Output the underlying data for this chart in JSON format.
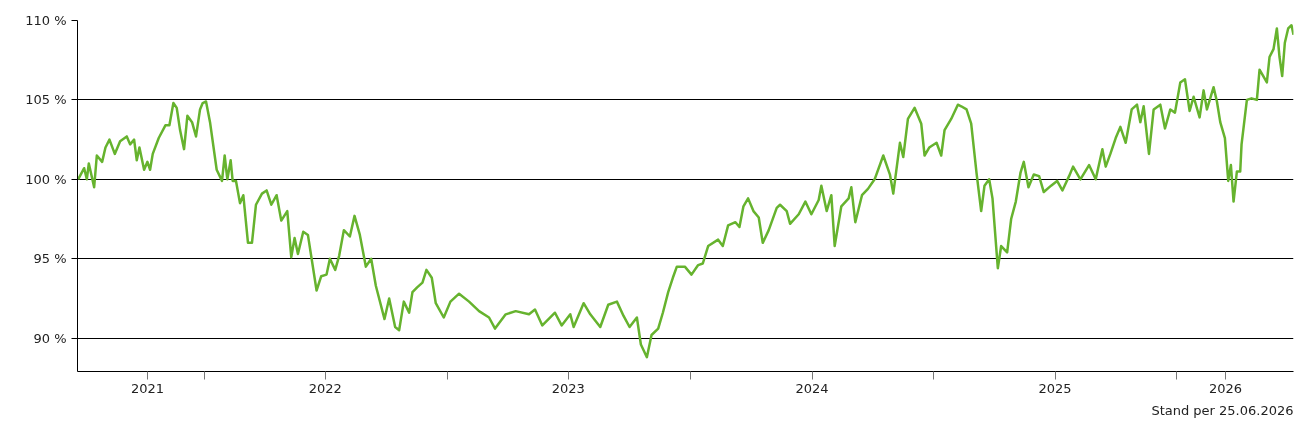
{
  "chart_data": {
    "type": "line",
    "x": [
      "2021-06-26",
      "2021-07-05",
      "2021-07-09",
      "2021-07-12",
      "2021-07-20",
      "2021-07-24",
      "2021-08-01",
      "2021-08-06",
      "2021-08-12",
      "2021-08-20",
      "2021-08-28",
      "2021-09-07",
      "2021-09-12",
      "2021-09-18",
      "2021-09-22",
      "2021-09-26",
      "2021-10-03",
      "2021-10-08",
      "2021-10-12",
      "2021-10-16",
      "2021-10-25",
      "2021-11-04",
      "2021-11-10",
      "2021-11-16",
      "2021-11-21",
      "2021-11-26",
      "2021-12-02",
      "2021-12-07",
      "2021-12-14",
      "2021-12-20",
      "2021-12-26",
      "2021-12-30",
      "2022-01-04",
      "2022-01-10",
      "2022-01-20",
      "2022-01-28",
      "2022-02-01",
      "2022-02-05",
      "2022-02-10",
      "2022-02-13",
      "2022-02-18",
      "2022-02-24",
      "2022-03-01",
      "2022-03-08",
      "2022-03-14",
      "2022-03-20",
      "2022-03-29",
      "2022-04-05",
      "2022-04-12",
      "2022-04-20",
      "2022-04-27",
      "2022-05-06",
      "2022-05-12",
      "2022-05-17",
      "2022-05-22",
      "2022-05-30",
      "2022-06-06",
      "2022-06-19",
      "2022-06-26",
      "2022-07-04",
      "2022-07-09",
      "2022-07-17",
      "2022-07-23",
      "2022-07-30",
      "2022-08-08",
      "2022-08-15",
      "2022-08-23",
      "2022-09-01",
      "2022-09-09",
      "2022-09-16",
      "2022-09-29",
      "2022-10-06",
      "2022-10-15",
      "2022-10-21",
      "2022-10-28",
      "2022-11-05",
      "2022-11-10",
      "2022-11-17",
      "2022-11-25",
      "2022-12-01",
      "2022-12-09",
      "2022-12-15",
      "2022-12-27",
      "2023-01-06",
      "2023-01-19",
      "2023-02-03",
      "2023-02-18",
      "2023-03-05",
      "2023-03-14",
      "2023-03-30",
      "2023-04-14",
      "2023-05-04",
      "2023-05-13",
      "2023-05-24",
      "2023-06-12",
      "2023-06-22",
      "2023-07-05",
      "2023-07-10",
      "2023-07-25",
      "2023-08-04",
      "2023-08-19",
      "2023-08-31",
      "2023-09-13",
      "2023-09-23",
      "2023-10-02",
      "2023-10-13",
      "2023-10-19",
      "2023-10-28",
      "2023-11-04",
      "2023-11-14",
      "2023-11-21",
      "2023-11-29",
      "2023-12-06",
      "2023-12-12",
      "2023-12-24",
      "2024-01-03",
      "2024-01-13",
      "2024-01-20",
      "2024-01-28",
      "2024-02-12",
      "2024-02-19",
      "2024-02-27",
      "2024-03-09",
      "2024-03-15",
      "2024-03-21",
      "2024-03-28",
      "2024-04-05",
      "2024-04-13",
      "2024-04-19",
      "2024-04-28",
      "2024-05-10",
      "2024-05-15",
      "2024-05-25",
      "2024-05-30",
      "2024-06-12",
      "2024-06-22",
      "2024-07-01",
      "2024-07-12",
      "2024-07-16",
      "2024-07-24",
      "2024-07-31",
      "2024-08-05",
      "2024-08-15",
      "2024-08-26",
      "2024-08-30",
      "2024-09-05",
      "2024-09-15",
      "2024-09-24",
      "2024-10-04",
      "2024-10-17",
      "2024-10-27",
      "2024-11-01",
      "2024-11-11",
      "2024-11-16",
      "2024-11-23",
      "2024-12-03",
      "2024-12-13",
      "2024-12-18",
      "2024-12-25",
      "2025-01-05",
      "2025-01-12",
      "2025-01-17",
      "2025-01-27",
      "2025-02-06",
      "2025-02-11",
      "2025-02-19",
      "2025-02-26",
      "2025-03-06",
      "2025-03-13",
      "2025-03-18",
      "2025-03-25",
      "2025-03-30",
      "2025-04-07",
      "2025-04-12",
      "2025-04-21",
      "2025-04-27",
      "2025-05-04",
      "2025-05-11",
      "2025-05-16",
      "2025-05-23",
      "2025-05-31",
      "2025-06-08",
      "2025-06-15",
      "2025-06-26",
      "2025-07-05",
      "2025-07-13",
      "2025-07-23",
      "2025-07-29",
      "2025-08-09",
      "2025-08-22",
      "2025-09-01",
      "2025-09-11",
      "2025-09-16",
      "2025-09-23",
      "2025-10-01",
      "2025-10-08",
      "2025-10-16",
      "2025-10-25",
      "2025-11-02",
      "2025-11-07",
      "2025-11-12",
      "2025-11-20",
      "2025-11-27",
      "2025-12-07",
      "2025-12-14",
      "2025-12-22",
      "2025-12-29",
      "2026-01-06",
      "2026-01-13",
      "2026-01-20",
      "2026-01-26",
      "2026-02-04",
      "2026-02-10",
      "2026-02-15",
      "2026-02-25",
      "2026-03-02",
      "2026-03-07",
      "2026-03-14",
      "2026-03-19",
      "2026-03-23",
      "2026-03-27",
      "2026-04-01",
      "2026-04-06",
      "2026-04-08",
      "2026-04-16",
      "2026-04-23",
      "2026-05-01",
      "2026-05-05",
      "2026-05-16",
      "2026-05-20",
      "2026-05-26",
      "2026-05-31",
      "2026-06-04",
      "2026-06-08",
      "2026-06-12",
      "2026-06-17",
      "2026-06-22",
      "2026-06-25"
    ],
    "series": [
      {
        "color": "#66b32e",
        "values": [
          100,
          100.7,
          100,
          101,
          99.5,
          101.5,
          101.1,
          102,
          102.5,
          101.6,
          102.4,
          102.7,
          102.2,
          102.5,
          101.2,
          102,
          100.6,
          101.1,
          100.6,
          101.6,
          102.6,
          103.4,
          103.4,
          104.8,
          104.5,
          103.1,
          101.9,
          104,
          103.6,
          102.7,
          104.4,
          104.8,
          104.9,
          103.6,
          100.6,
          99.9,
          101.5,
          100,
          101.2,
          99.9,
          99.9,
          98.5,
          99,
          96,
          96,
          98.4,
          99.1,
          99.3,
          98.4,
          99,
          97.4,
          98,
          95.1,
          96.3,
          95.3,
          96.7,
          96.5,
          93,
          93.9,
          94,
          95,
          94.3,
          95.2,
          96.8,
          96.4,
          97.7,
          96.5,
          94.5,
          95,
          93.3,
          91.2,
          92.5,
          90.7,
          90.5,
          92.3,
          91.6,
          92.9,
          93.2,
          93.5,
          94.3,
          93.8,
          92.2,
          91.3,
          92.3,
          92.8,
          92.3,
          91.7,
          91.3,
          90.6,
          91.5,
          91.7,
          91.5,
          91.8,
          90.8,
          91.6,
          90.8,
          91.5,
          90.7,
          92.2,
          91.5,
          90.7,
          92.1,
          92.3,
          91.4,
          90.7,
          91.3,
          89.6,
          88.8,
          90.2,
          90.6,
          91.6,
          92.9,
          93.8,
          94.5,
          94.5,
          94.0,
          94.6,
          94.7,
          95.8,
          96.2,
          95.8,
          97.1,
          97.3,
          97.0,
          98.3,
          98.8,
          98.0,
          97.6,
          96.0,
          96.8,
          98.2,
          98.4,
          98.0,
          97.2,
          97.8,
          98.6,
          97.8,
          98.7,
          99.6,
          98.0,
          99.0,
          95.8,
          98.3,
          98.8,
          99.5,
          97.3,
          99.0,
          99.4,
          100.0,
          101.5,
          100.3,
          99.1,
          102.3,
          101.4,
          103.8,
          104.5,
          103.5,
          101.5,
          102.0,
          102.3,
          101.5,
          103.1,
          103.8,
          104.7,
          104.6,
          104.4,
          103.5,
          100.4,
          98.0,
          99.6,
          100.0,
          98.8,
          94.4,
          95.8,
          95.4,
          97.5,
          98.6,
          100.4,
          101.1,
          99.5,
          100.3,
          100.2,
          99.2,
          99.6,
          99.9,
          99.3,
          100.2,
          100.8,
          100.0,
          100.9,
          100.0,
          101.9,
          100.8,
          101.6,
          102.6,
          103.3,
          102.3,
          104.4,
          104.7,
          103.6,
          104.6,
          101.6,
          104.4,
          104.7,
          103.2,
          104.4,
          104.2,
          106.1,
          106.3,
          104.3,
          105.2,
          103.9,
          105.6,
          104.4,
          105.8,
          104.9,
          103.6,
          102.6,
          99.9,
          100.9,
          98.6,
          100.5,
          100.5,
          102.2,
          105.0,
          105.1,
          105.0,
          106.9,
          106.1,
          107.7,
          108.2,
          109.5,
          107.7,
          106.5,
          108.6,
          109.5,
          109.7,
          109.1
        ]
      }
    ],
    "xlim": [
      "2021-06-25",
      "2026-06-25"
    ],
    "ylim": [
      87.9,
      110
    ],
    "xticks": [
      {
        "value": "2021-10-08",
        "label": "2021"
      },
      {
        "value": "2022-01-01",
        "label": null
      },
      {
        "value": "2022-07-02",
        "label": "2022"
      },
      {
        "value": "2023-01-01",
        "label": null
      },
      {
        "value": "2023-07-02",
        "label": "2023"
      },
      {
        "value": "2024-01-01",
        "label": null
      },
      {
        "value": "2024-07-02",
        "label": "2024"
      },
      {
        "value": "2025-01-01",
        "label": null
      },
      {
        "value": "2025-07-02",
        "label": "2025"
      },
      {
        "value": "2026-01-01",
        "label": null
      },
      {
        "value": "2026-03-15",
        "label": "2026"
      }
    ],
    "yticks": [
      {
        "value": 90,
        "label": "90 %"
      },
      {
        "value": 95,
        "label": "95 %"
      },
      {
        "value": 100,
        "label": "100 %"
      },
      {
        "value": 105,
        "label": "105 %"
      },
      {
        "value": 110,
        "label": "110 %"
      }
    ],
    "grid": "y",
    "annotations": [
      "Stand per 25.06.2026"
    ]
  }
}
